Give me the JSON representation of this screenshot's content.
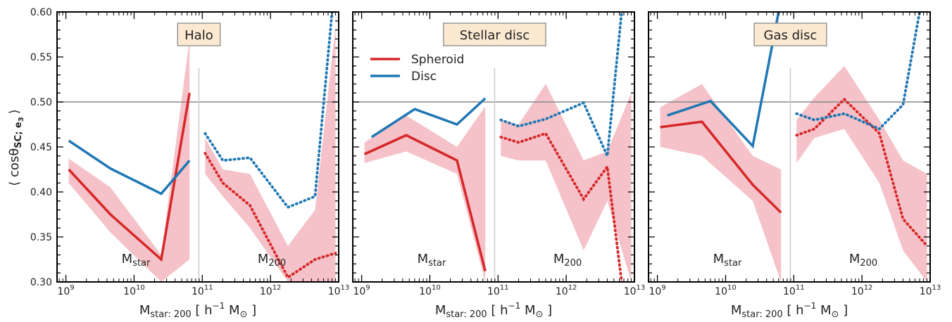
{
  "figure": {
    "ylabel": "⟨ cosθ SC; e3 ⟩",
    "ylabel_parts": {
      "main": "⟨ cosθ",
      "sub": "SC; e",
      "subsub": "3",
      "close": "⟩"
    },
    "xlabel": "M star: 200 [ h−1 M⊙ ]",
    "xlabel_parts": {
      "main": "M",
      "sub": "star: 200",
      "mid": " [ h",
      "sup": "−1",
      "tail": " M",
      "sun": "⊙",
      "close": " ]"
    },
    "colors": {
      "spheroid": "#d62728",
      "disc": "#1f77b4",
      "band": "#f4c2c8",
      "ref": "#888888",
      "divider": "#cccccc",
      "titlebox": "#fbe9d2"
    }
  },
  "chart_data": [
    {
      "type": "line",
      "title": "Halo",
      "xscale": "log",
      "ylim": [
        0.3,
        0.6
      ],
      "yticks": [
        "0.30",
        "0.35",
        "0.40",
        "0.45",
        "0.50",
        "0.55",
        "0.60"
      ],
      "xticks": [
        {
          "base": "10",
          "exp": "9"
        },
        {
          "base": "10",
          "exp": "10"
        },
        {
          "base": "10",
          "exp": "11"
        },
        {
          "base": "10",
          "exp": "12"
        },
        {
          "base": "10",
          "exp": "13"
        }
      ],
      "reference_line": 0.5,
      "region_labels": [
        {
          "main": "M",
          "sub": "star"
        },
        {
          "main": "M",
          "sub": "200"
        }
      ],
      "legend": null,
      "series": [
        {
          "name": "Spheroid",
          "style": "solid",
          "color": "spheroid",
          "x": [
            1100000000.0,
            4500000000.0,
            25000000000.0,
            65000000000.0
          ],
          "y": [
            0.425,
            0.375,
            0.325,
            0.51
          ]
        },
        {
          "name": "Disc",
          "style": "solid",
          "color": "disc",
          "x": [
            1100000000.0,
            4500000000.0,
            25000000000.0,
            65000000000.0
          ],
          "y": [
            0.457,
            0.426,
            0.398,
            0.435
          ]
        },
        {
          "name": "Spheroid",
          "style": "dotted",
          "color": "spheroid",
          "x": [
            110000000000.0,
            200000000000.0,
            500000000000.0,
            1800000000000.0,
            4500000000000.0,
            9000000000000.0
          ],
          "y": [
            0.443,
            0.41,
            0.385,
            0.305,
            0.325,
            0.332
          ]
        },
        {
          "name": "Disc",
          "style": "dotted",
          "color": "disc",
          "x": [
            110000000000.0,
            200000000000.0,
            500000000000.0,
            1800000000000.0,
            4500000000000.0,
            8000000000000.0
          ],
          "y": [
            0.465,
            0.435,
            0.438,
            0.383,
            0.395,
            0.6
          ]
        }
      ],
      "bands": [
        {
          "x": [
            1100000000.0,
            4500000000.0,
            25000000000.0,
            65000000000.0
          ],
          "lo": [
            0.41,
            0.355,
            0.3,
            0.325
          ],
          "hi": [
            0.437,
            0.405,
            0.33,
            0.57
          ]
        },
        {
          "x": [
            110000000000.0,
            200000000000.0,
            500000000000.0,
            1800000000000.0,
            4500000000000.0,
            9000000000000.0
          ],
          "lo": [
            0.42,
            0.395,
            0.36,
            0.3,
            0.3,
            0.3
          ],
          "hi": [
            0.46,
            0.425,
            0.42,
            0.34,
            0.38,
            0.585
          ]
        }
      ]
    },
    {
      "type": "line",
      "title": "Stellar disc",
      "xscale": "log",
      "ylim": [
        0.3,
        0.6
      ],
      "yticks": [
        "0.30",
        "0.35",
        "0.40",
        "0.45",
        "0.50",
        "0.55",
        "0.60"
      ],
      "xticks": [
        {
          "base": "10",
          "exp": "9"
        },
        {
          "base": "10",
          "exp": "10"
        },
        {
          "base": "10",
          "exp": "11"
        },
        {
          "base": "10",
          "exp": "12"
        },
        {
          "base": "10",
          "exp": "13"
        }
      ],
      "reference_line": 0.5,
      "region_labels": [
        {
          "main": "M",
          "sub": "star"
        },
        {
          "main": "M",
          "sub": "200"
        }
      ],
      "legend": [
        "Spheroid",
        "Disc"
      ],
      "series": [
        {
          "name": "Spheroid",
          "style": "solid",
          "color": "spheroid",
          "x": [
            1100000000.0,
            4500000000.0,
            25000000000.0,
            65000000000.0
          ],
          "y": [
            0.442,
            0.463,
            0.435,
            0.312
          ]
        },
        {
          "name": "Disc",
          "style": "solid",
          "color": "disc",
          "x": [
            1400000000.0,
            6000000000.0,
            25000000000.0,
            65000000000.0
          ],
          "y": [
            0.461,
            0.492,
            0.475,
            0.504
          ]
        },
        {
          "name": "Spheroid",
          "style": "dotted",
          "color": "spheroid",
          "x": [
            110000000000.0,
            200000000000.0,
            500000000000.0,
            1800000000000.0,
            4000000000000.0,
            6500000000000.0
          ],
          "y": [
            0.461,
            0.455,
            0.465,
            0.392,
            0.428,
            0.3
          ]
        },
        {
          "name": "Disc",
          "style": "dotted",
          "color": "disc",
          "x": [
            110000000000.0,
            200000000000.0,
            500000000000.0,
            1800000000000.0,
            4000000000000.0,
            6500000000000.0
          ],
          "y": [
            0.48,
            0.473,
            0.481,
            0.499,
            0.44,
            0.6
          ]
        }
      ],
      "bands": [
        {
          "x": [
            1100000000.0,
            4500000000.0,
            25000000000.0,
            65000000000.0
          ],
          "lo": [
            0.432,
            0.445,
            0.42,
            0.3
          ],
          "hi": [
            0.455,
            0.485,
            0.45,
            0.495
          ]
        },
        {
          "x": [
            110000000000.0,
            200000000000.0,
            500000000000.0,
            1800000000000.0,
            4000000000000.0,
            9000000000000.0
          ],
          "lo": [
            0.44,
            0.435,
            0.435,
            0.335,
            0.39,
            0.3
          ],
          "hi": [
            0.48,
            0.475,
            0.52,
            0.435,
            0.445,
            0.51
          ]
        }
      ]
    },
    {
      "type": "line",
      "title": "Gas disc",
      "xscale": "log",
      "ylim": [
        0.3,
        0.6
      ],
      "yticks": [
        "0.30",
        "0.35",
        "0.40",
        "0.45",
        "0.50",
        "0.55",
        "0.60"
      ],
      "xticks": [
        {
          "base": "10",
          "exp": "9"
        },
        {
          "base": "10",
          "exp": "10"
        },
        {
          "base": "10",
          "exp": "11"
        },
        {
          "base": "10",
          "exp": "12"
        },
        {
          "base": "10",
          "exp": "13"
        }
      ],
      "reference_line": 0.5,
      "region_labels": [
        {
          "main": "M",
          "sub": "star"
        },
        {
          "main": "M",
          "sub": "200"
        }
      ],
      "legend": null,
      "series": [
        {
          "name": "Spheroid",
          "style": "solid",
          "color": "spheroid",
          "x": [
            1100000000.0,
            4500000000.0,
            25000000000.0,
            65000000000.0
          ],
          "y": [
            0.472,
            0.478,
            0.408,
            0.377
          ]
        },
        {
          "name": "Disc",
          "style": "solid",
          "color": "disc",
          "x": [
            1400000000.0,
            6000000000.0,
            25000000000.0,
            60000000000.0
          ],
          "y": [
            0.485,
            0.501,
            0.451,
            0.6
          ]
        },
        {
          "name": "Spheroid",
          "style": "dotted",
          "color": "spheroid",
          "x": [
            110000000000.0,
            200000000000.0,
            550000000000.0,
            1800000000000.0,
            4000000000000.0,
            9000000000000.0
          ],
          "y": [
            0.463,
            0.47,
            0.503,
            0.465,
            0.37,
            0.34
          ]
        },
        {
          "name": "Disc",
          "style": "dotted",
          "color": "disc",
          "x": [
            110000000000.0,
            200000000000.0,
            550000000000.0,
            1800000000000.0,
            4000000000000.0,
            7000000000000.0
          ],
          "y": [
            0.487,
            0.48,
            0.487,
            0.47,
            0.497,
            0.6
          ]
        }
      ],
      "bands": [
        {
          "x": [
            1100000000.0,
            4500000000.0,
            25000000000.0,
            65000000000.0
          ],
          "lo": [
            0.45,
            0.44,
            0.39,
            0.3
          ],
          "hi": [
            0.494,
            0.52,
            0.44,
            0.425
          ]
        },
        {
          "x": [
            110000000000.0,
            200000000000.0,
            550000000000.0,
            1800000000000.0,
            4000000000000.0,
            9000000000000.0
          ],
          "lo": [
            0.432,
            0.46,
            0.47,
            0.41,
            0.335,
            0.3
          ],
          "hi": [
            0.48,
            0.505,
            0.54,
            0.48,
            0.435,
            0.42
          ]
        }
      ]
    }
  ]
}
